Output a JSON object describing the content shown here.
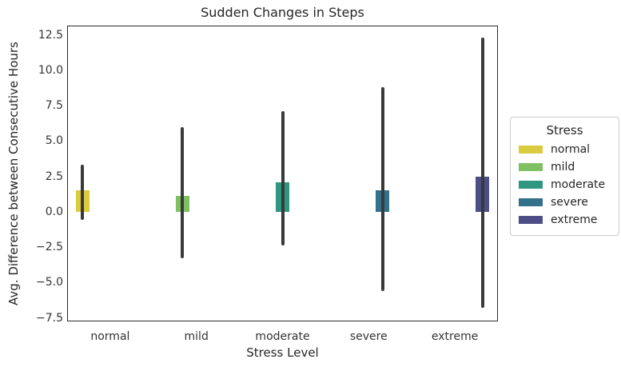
{
  "chart_data": {
    "type": "bar",
    "title": "Sudden Changes in Steps",
    "xlabel": "Stress Level",
    "ylabel": "Avg. Difference between Consecutive Hours",
    "categories": [
      "normal",
      "mild",
      "moderate",
      "severe",
      "extreme"
    ],
    "series_name": "Stress",
    "values": [
      1.5,
      1.1,
      2.1,
      1.5,
      2.5
    ],
    "error_bars": {
      "low": [
        -0.6,
        -3.3,
        -2.4,
        -5.6,
        -6.8
      ],
      "high": [
        3.3,
        6.0,
        7.1,
        8.8,
        12.3
      ]
    },
    "bar_colors": [
      "#dbcb3e",
      "#7fc162",
      "#2f9682",
      "#33708a",
      "#4c4e86"
    ],
    "error_color": "#3a3a3a",
    "axis_color": "#2b2b2b",
    "text_color": "#262626",
    "grid": false,
    "ylim": [
      -7.75,
      13.15
    ],
    "yticks": [
      {
        "value": 12.5,
        "label": "12.5"
      },
      {
        "value": 10.0,
        "label": "10.0"
      },
      {
        "value": 7.5,
        "label": "7.5"
      },
      {
        "value": 5.0,
        "label": "5.0"
      },
      {
        "value": 2.5,
        "label": "2.5"
      },
      {
        "value": 0.0,
        "label": "0.0"
      },
      {
        "value": -2.5,
        "label": "−2.5"
      },
      {
        "value": -5.0,
        "label": "−5.0"
      },
      {
        "value": -7.5,
        "label": "−7.5"
      }
    ],
    "legend": {
      "title": "Stress",
      "position": "right-outside",
      "entries": [
        {
          "label": "normal",
          "color": "#dbcb3e"
        },
        {
          "label": "mild",
          "color": "#7fc162"
        },
        {
          "label": "moderate",
          "color": "#2f9682"
        },
        {
          "label": "severe",
          "color": "#33708a"
        },
        {
          "label": "extreme",
          "color": "#4c4e86"
        }
      ]
    }
  }
}
